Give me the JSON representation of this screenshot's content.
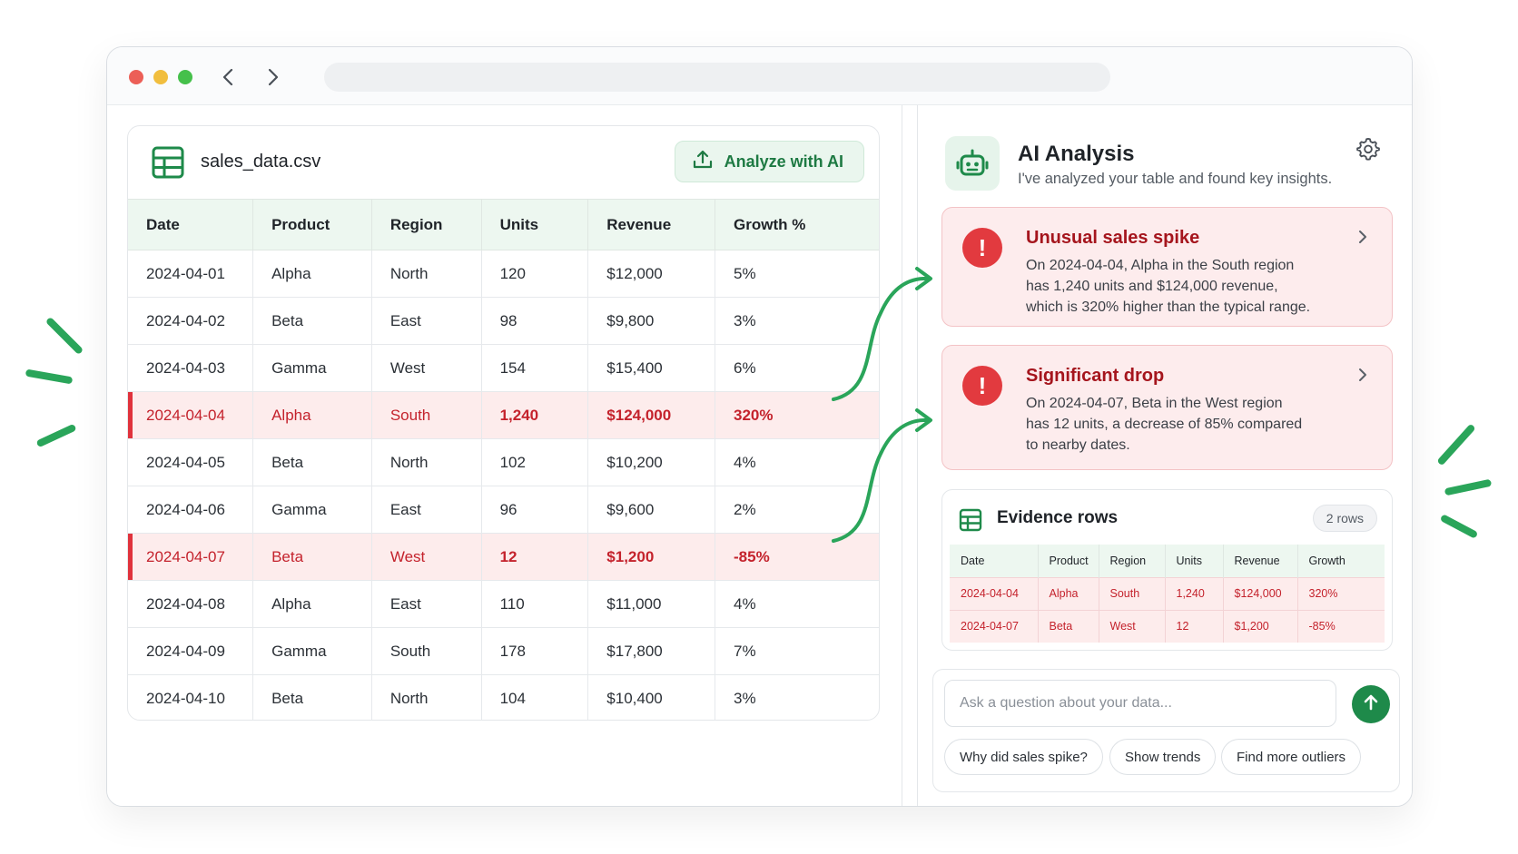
{
  "app": {
    "file_name": "sales_data.csv",
    "analyze_label": "Analyze with AI"
  },
  "table": {
    "columns": [
      "Date",
      "Product",
      "Region",
      "Units",
      "Revenue",
      "Growth %"
    ],
    "rows": [
      {
        "date": "2024-04-01",
        "product": "Alpha",
        "region": "North",
        "units": "120",
        "revenue": "$12,000",
        "growth": "5%",
        "flag": false
      },
      {
        "date": "2024-04-02",
        "product": "Beta",
        "region": "East",
        "units": "98",
        "revenue": "$9,800",
        "growth": "3%",
        "flag": false
      },
      {
        "date": "2024-04-03",
        "product": "Gamma",
        "region": "West",
        "units": "154",
        "revenue": "$15,400",
        "growth": "6%",
        "flag": false
      },
      {
        "date": "2024-04-04",
        "product": "Alpha",
        "region": "South",
        "units": "1,240",
        "revenue": "$124,000",
        "growth": "320%",
        "flag": true
      },
      {
        "date": "2024-04-05",
        "product": "Beta",
        "region": "North",
        "units": "102",
        "revenue": "$10,200",
        "growth": "4%",
        "flag": false
      },
      {
        "date": "2024-04-06",
        "product": "Gamma",
        "region": "East",
        "units": "96",
        "revenue": "$9,600",
        "growth": "2%",
        "flag": false
      },
      {
        "date": "2024-04-07",
        "product": "Beta",
        "region": "West",
        "units": "12",
        "revenue": "$1,200",
        "growth": "-85%",
        "flag": true
      },
      {
        "date": "2024-04-08",
        "product": "Alpha",
        "region": "East",
        "units": "110",
        "revenue": "$11,000",
        "growth": "4%",
        "flag": false
      },
      {
        "date": "2024-04-09",
        "product": "Gamma",
        "region": "South",
        "units": "178",
        "revenue": "$17,800",
        "growth": "7%",
        "flag": false
      },
      {
        "date": "2024-04-10",
        "product": "Beta",
        "region": "North",
        "units": "104",
        "revenue": "$10,400",
        "growth": "3%",
        "flag": false
      }
    ]
  },
  "ai": {
    "title": "AI Analysis",
    "subtitle": "I've analyzed your table and found key insights.",
    "insights": [
      {
        "title": "Unusual sales spike",
        "lines": [
          "On 2024-04-04, Alpha in the South region",
          "has 1,240 units and $124,000 revenue,",
          "which is 320% higher than the typical range."
        ]
      },
      {
        "title": "Significant drop",
        "lines": [
          "On 2024-04-07, Beta in the West region",
          "has 12 units, a decrease of 85% compared",
          "to nearby dates."
        ]
      }
    ],
    "evidence": {
      "title": "Evidence rows",
      "badge": "2 rows",
      "columns": [
        "Date",
        "Product",
        "Region",
        "Units",
        "Revenue",
        "Growth"
      ],
      "rows": [
        [
          "2024-04-04",
          "Alpha",
          "South",
          "1,240",
          "$124,000",
          "320%"
        ],
        [
          "2024-04-07",
          "Beta",
          "West",
          "12",
          "$1,200",
          "-85%"
        ]
      ]
    },
    "ask_placeholder": "Ask a question about your data...",
    "chips": [
      "Why did sales spike?",
      "Show trends",
      "Find more outliers"
    ]
  },
  "colors": {
    "accent": "#1e8a4a",
    "alert": "#e23a3f",
    "highlight_bg": "#fdecec",
    "highlight_text": "#c4222c"
  },
  "icons": [
    "table-icon",
    "upload-icon",
    "robot-icon",
    "gear-icon",
    "alert-icon",
    "chevron-right-icon",
    "arrow-up-icon",
    "back-arrow-icon",
    "forward-arrow-icon"
  ]
}
